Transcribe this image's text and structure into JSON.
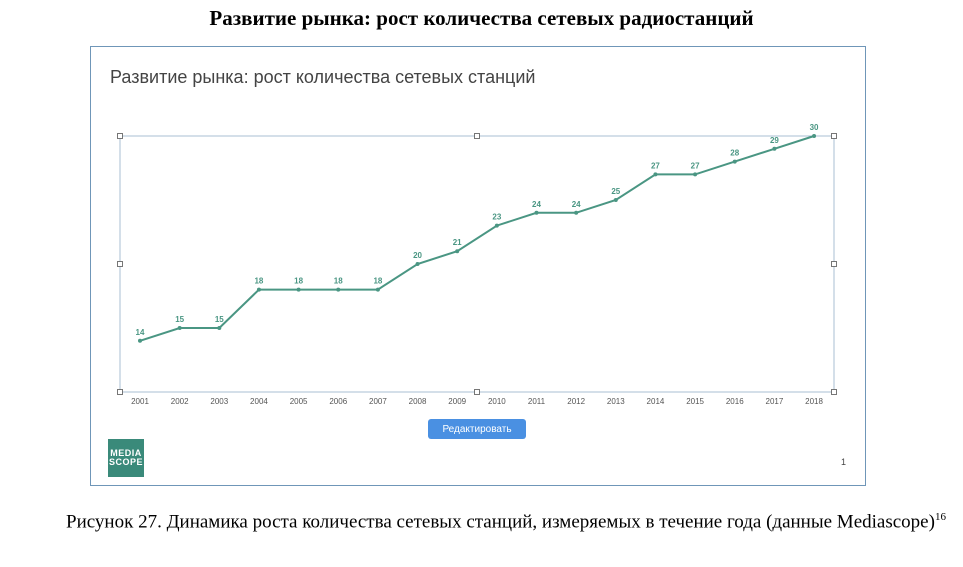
{
  "document": {
    "title": "Развитие рынка: рост количества сетевых радиостанций",
    "caption": "Рисунок 27. Динамика роста количества сетевых станций, измеряемых в течение года (данные Mediascope)",
    "footnote_ref": "16"
  },
  "widget": {
    "edit_button_label": "Редактировать",
    "logo_lines": [
      "MEDIA",
      "SCOPE"
    ],
    "page_number": "1"
  },
  "colors": {
    "line": "#4a9683",
    "frame_border": "#6f96b8",
    "button": "#4a90e2",
    "logo": "#3a8a7a"
  },
  "chart_data": {
    "type": "line",
    "title": "Развитие рынка: рост количества сетевых станций",
    "xlabel": "",
    "ylabel": "",
    "categories": [
      "2001",
      "2002",
      "2003",
      "2004",
      "2005",
      "2006",
      "2007",
      "2008",
      "2009",
      "2010",
      "2011",
      "2012",
      "2013",
      "2014",
      "2015",
      "2016",
      "2017",
      "2018"
    ],
    "series": [
      {
        "values": [
          14,
          15,
          15,
          18,
          18,
          18,
          18,
          20,
          21,
          23,
          24,
          24,
          25,
          27,
          27,
          28,
          29,
          30
        ]
      }
    ],
    "ylim": [
      10,
      30
    ],
    "grid": false,
    "data_labels": true
  }
}
